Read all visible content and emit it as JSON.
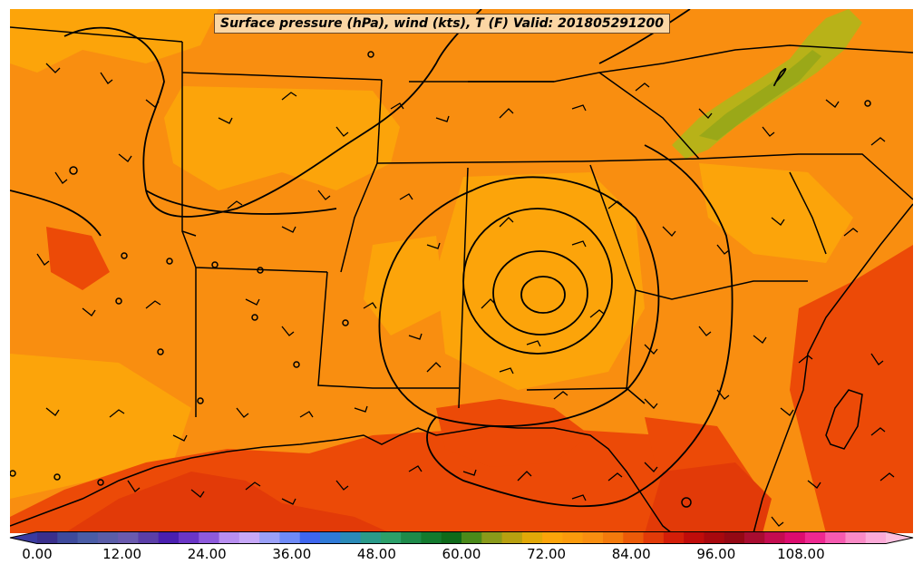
{
  "map": {
    "title": "Surface pressure (hPa), wind (kts), T (F) Valid: 201805291200",
    "region": "Southeastern United States and Gulf of Mexico",
    "features": [
      "state borders",
      "coastline",
      "isobars",
      "wind barbs",
      "filled temperature contours"
    ],
    "low_pressure_center": "northern Alabama",
    "colors": {
      "base_orange": "#f98e10",
      "light_orange": "#fca40a",
      "warm_red": "#ec4a07",
      "hot_red": "#e23a08",
      "mountain_yellow": "#b8b218",
      "border": "#000000"
    }
  },
  "colorbar": {
    "labels": [
      "0.00",
      "12.00",
      "24.00",
      "36.00",
      "48.00",
      "60.00",
      "72.00",
      "84.00",
      "96.00",
      "108.00"
    ],
    "colors": [
      "#3a2f8c",
      "#3e4a9c",
      "#4a5ca6",
      "#5a5da8",
      "#6a5aae",
      "#5b3ea8",
      "#4a1fb0",
      "#6a35c6",
      "#8e5adc",
      "#b88ef0",
      "#c7a8f8",
      "#9aa0f8",
      "#6e8af6",
      "#3e66ee",
      "#2f7ad8",
      "#2a8ab8",
      "#2a9a8a",
      "#2ca06a",
      "#1e8a4a",
      "#137a2e",
      "#0e6a1a",
      "#4a8a1a",
      "#8a9a1a",
      "#b8a010",
      "#e2a808",
      "#fca40a",
      "#fb9a0c",
      "#f98e10",
      "#f47a0c",
      "#ec5a08",
      "#e23a08",
      "#d41e08",
      "#c00c0a",
      "#a8080e",
      "#940814",
      "#a80c30",
      "#c40c50",
      "#dc0c6e",
      "#ee2890",
      "#f65ab0",
      "#fa8ac6",
      "#fcaad8"
    ],
    "vmin": 0,
    "vmax": 120,
    "extend": "both"
  }
}
